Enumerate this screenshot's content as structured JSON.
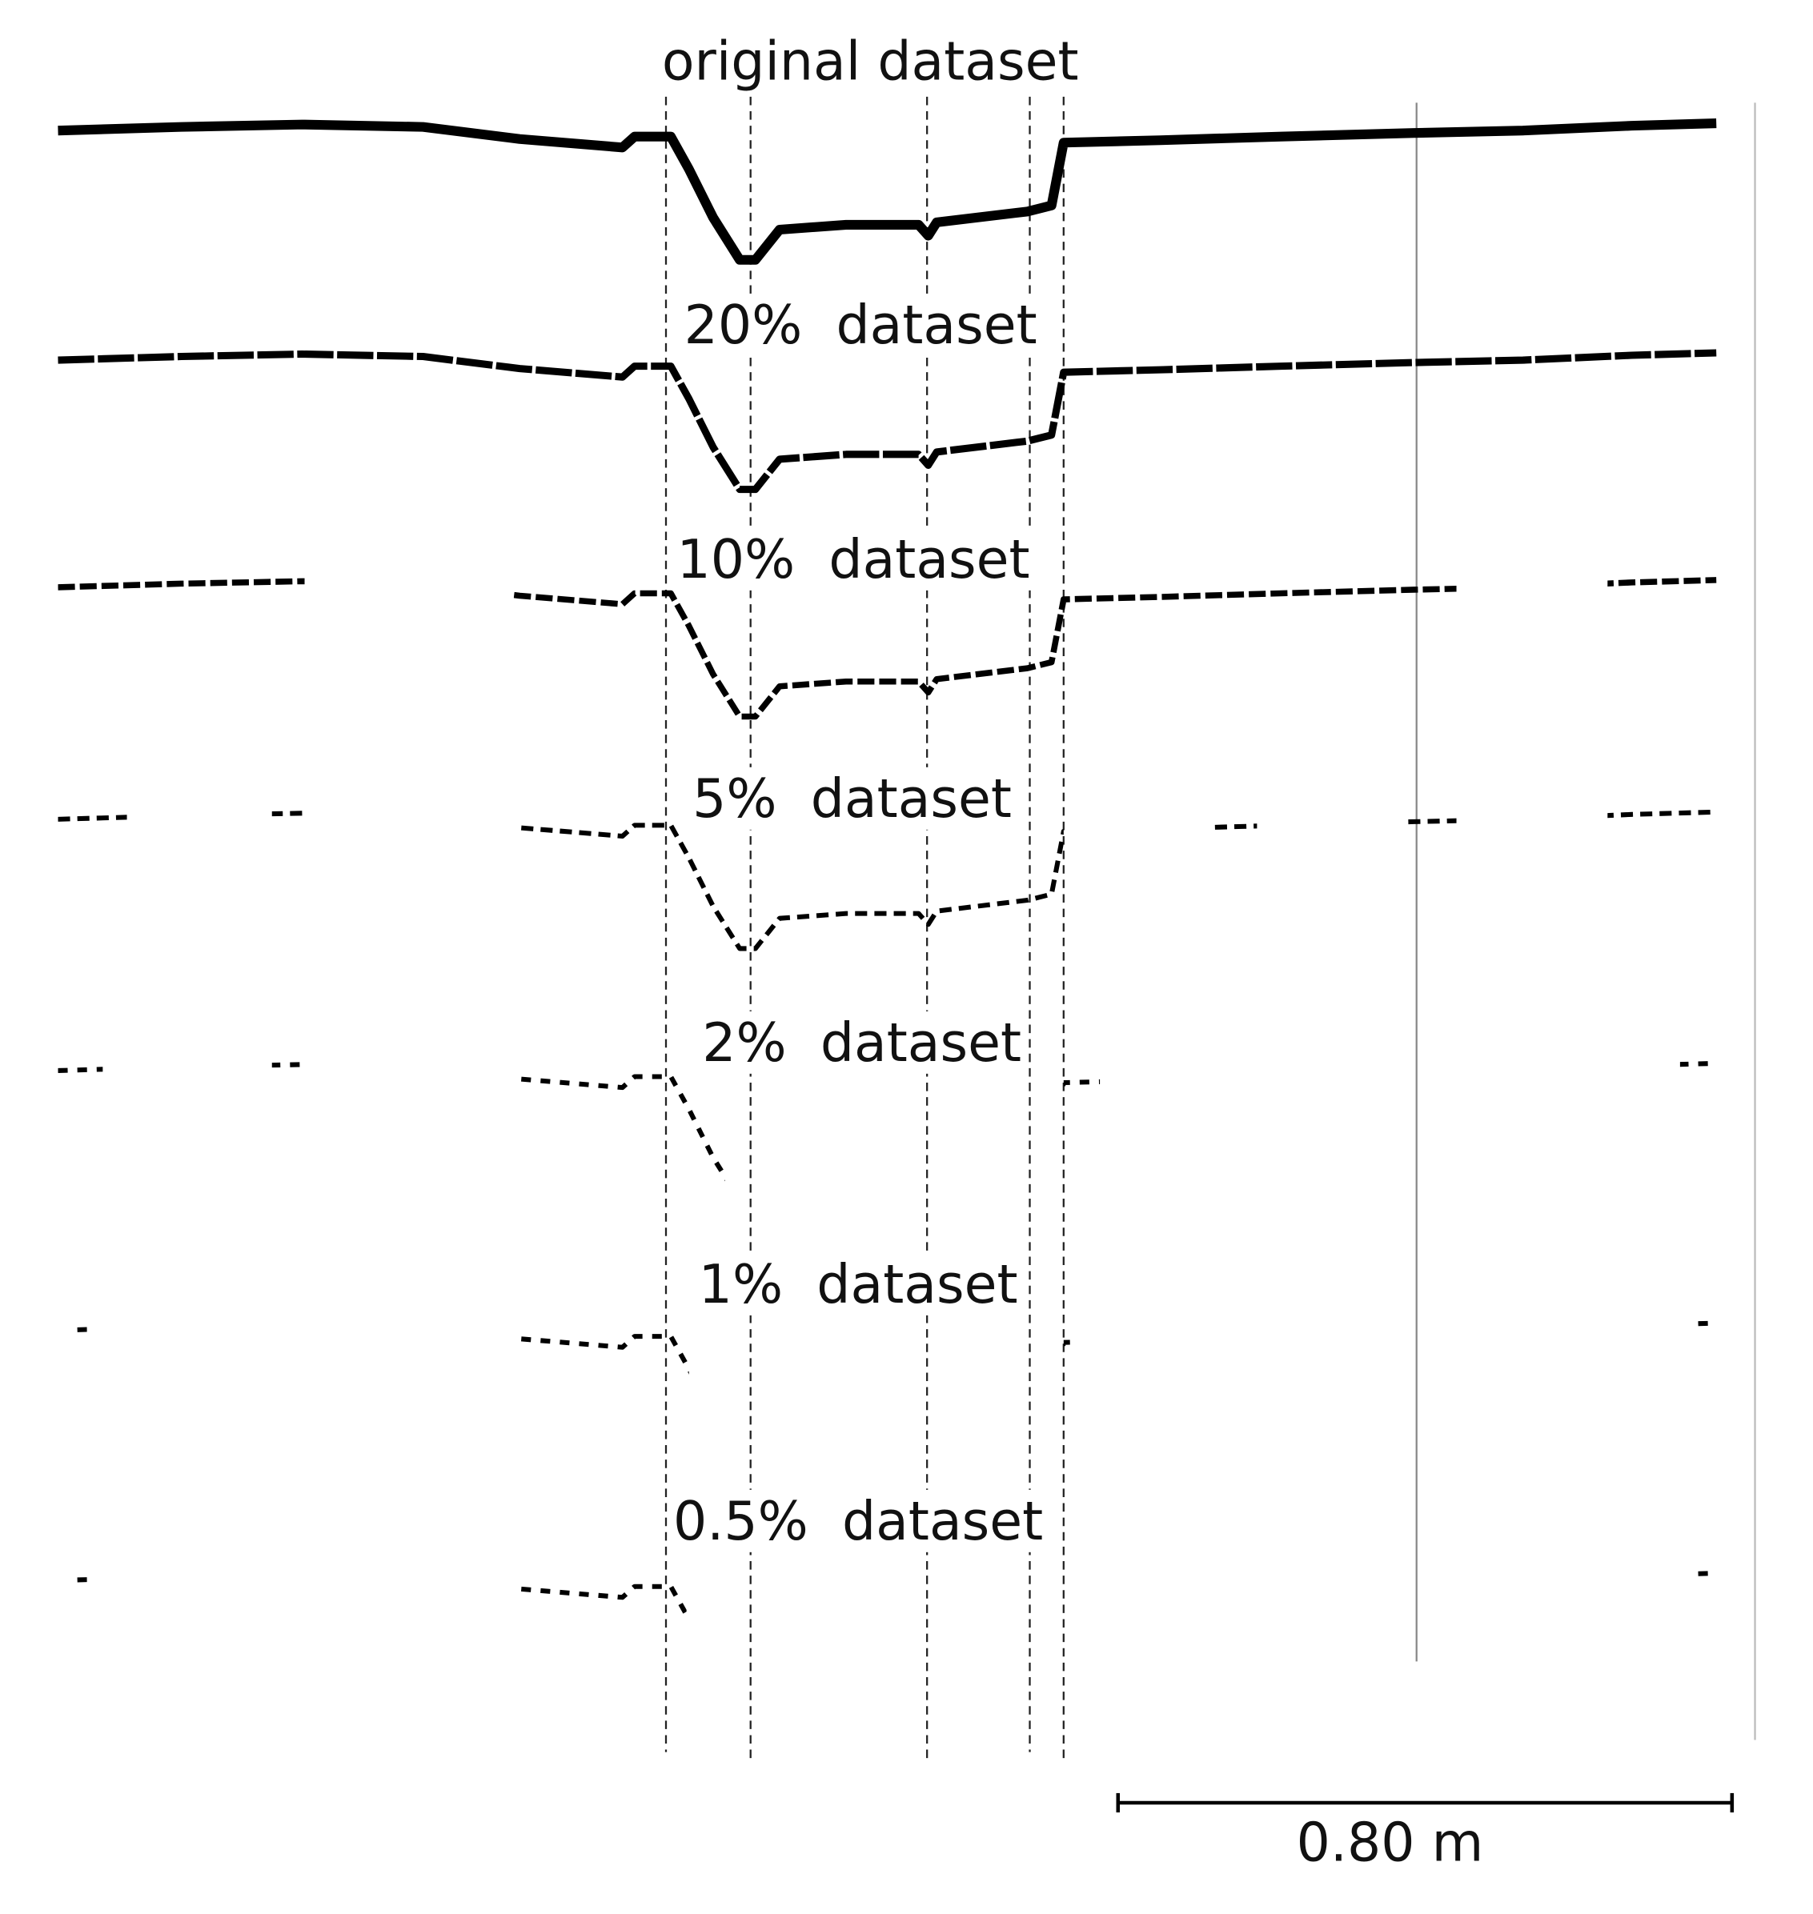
{
  "labels": [
    "original dataset",
    "20%  dataset",
    "10%  dataset",
    "5%  dataset",
    "2%  dataset",
    "1%  dataset",
    "0.5%  dataset"
  ],
  "scale_bar": {
    "label": "0.80 m"
  }
}
